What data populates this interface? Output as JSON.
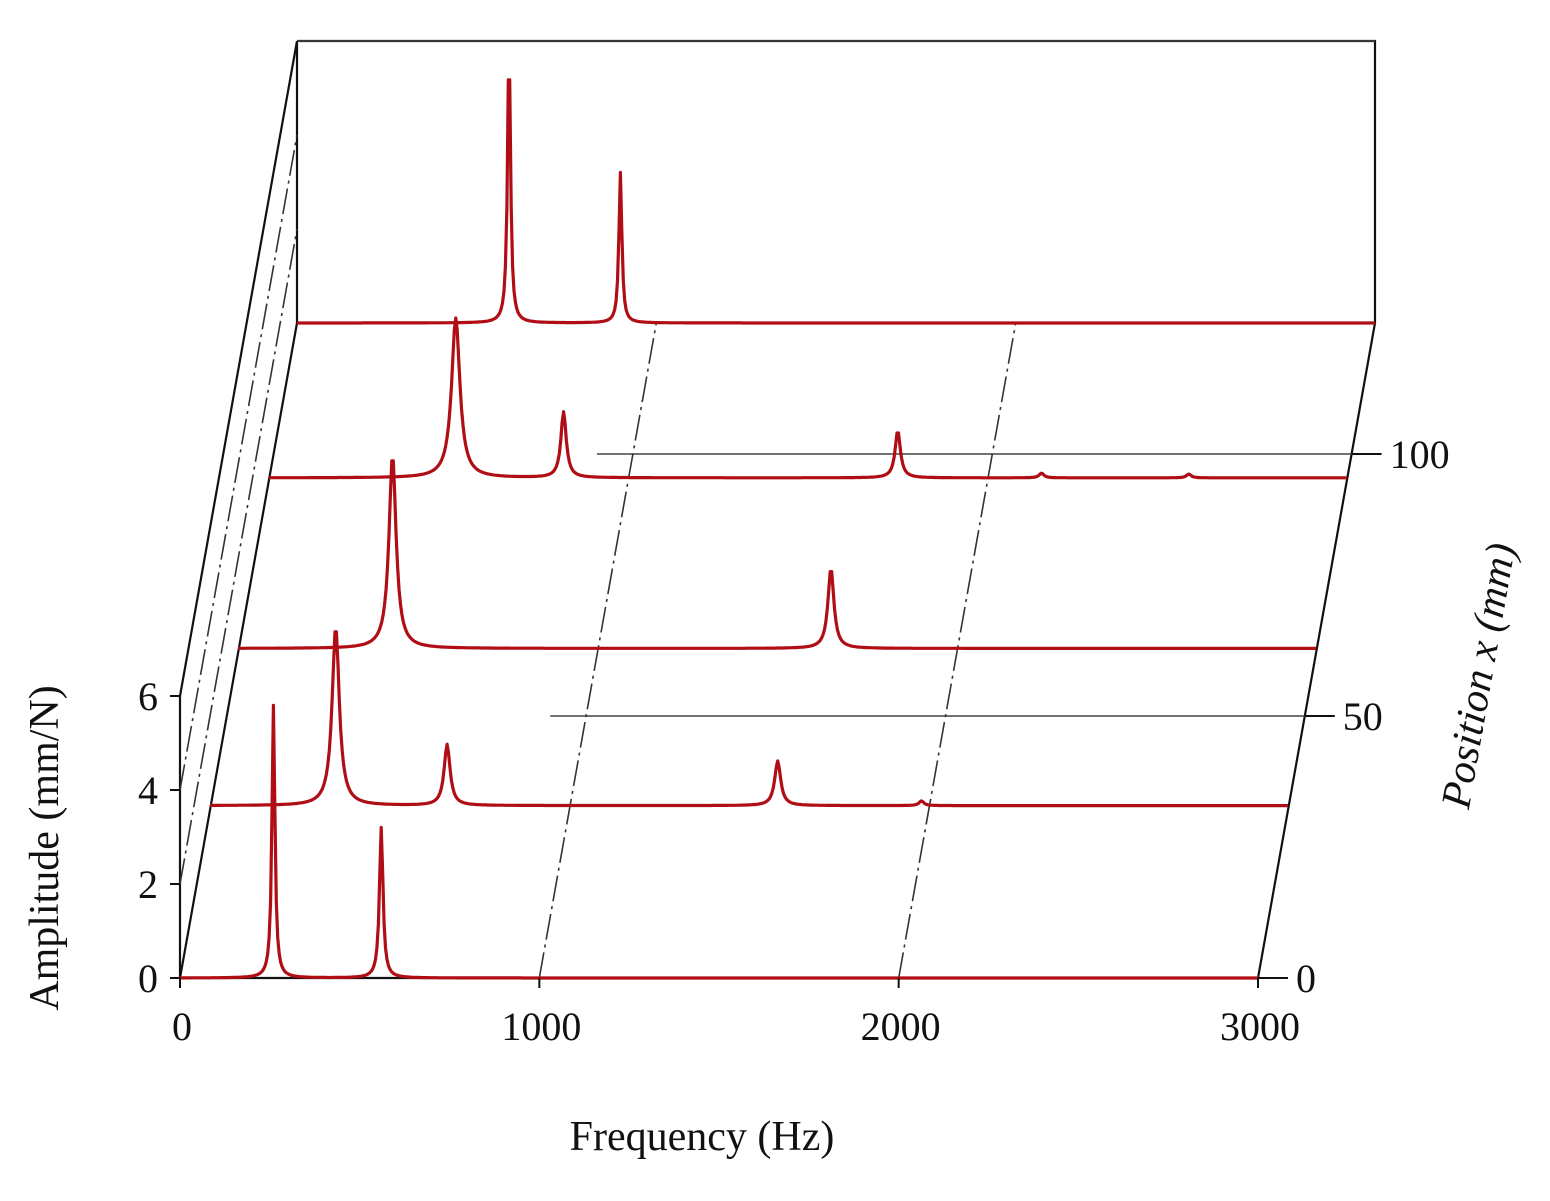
{
  "chart_data": {
    "type": "line",
    "subtype": "3d-waterfall",
    "xlabel": "Frequency (Hz)",
    "ylabel": "Amplitude (mm/N)",
    "zlabel": "Position x (mm)",
    "xlim": [
      0,
      3000
    ],
    "ylim": [
      0,
      6
    ],
    "zlim": [
      0,
      125
    ],
    "x_ticks": [
      "0",
      "1000",
      "2000",
      "3000"
    ],
    "y_ticks": [
      "0",
      "2",
      "4",
      "6"
    ],
    "z_ticks": [
      "0",
      "50",
      "100"
    ],
    "grid": false,
    "series_color": "#b00d15",
    "series": [
      {
        "position": 0,
        "baseline": 0.0,
        "peaks": [
          {
            "x": 260,
            "amp": 5.8,
            "width": 5
          },
          {
            "x": 560,
            "amp": 3.2,
            "width": 6
          }
        ]
      },
      {
        "position": 32,
        "baseline": 0.1,
        "peaks": [
          {
            "x": 350,
            "amp": 3.8,
            "width": 12
          },
          {
            "x": 660,
            "amp": 1.3,
            "width": 10
          },
          {
            "x": 1580,
            "amp": 0.95,
            "width": 10
          },
          {
            "x": 1980,
            "amp": 0.1,
            "width": 8
          }
        ]
      },
      {
        "position": 62,
        "baseline": 0.1,
        "peaks": [
          {
            "x": 430,
            "amp": 4.1,
            "width": 12
          },
          {
            "x": 1650,
            "amp": 1.7,
            "width": 10
          }
        ]
      },
      {
        "position": 95,
        "baseline": 0.05,
        "peaks": [
          {
            "x": 520,
            "amp": 3.4,
            "width": 14
          },
          {
            "x": 820,
            "amp": 1.4,
            "width": 9
          },
          {
            "x": 1750,
            "amp": 1.0,
            "width": 9
          },
          {
            "x": 2150,
            "amp": 0.1,
            "width": 8
          },
          {
            "x": 2560,
            "amp": 0.08,
            "width": 8
          }
        ]
      },
      {
        "position": 125,
        "baseline": 0.0,
        "peaks": [
          {
            "x": 590,
            "amp": 6.0,
            "width": 5
          },
          {
            "x": 900,
            "amp": 3.2,
            "width": 5
          }
        ]
      }
    ]
  }
}
